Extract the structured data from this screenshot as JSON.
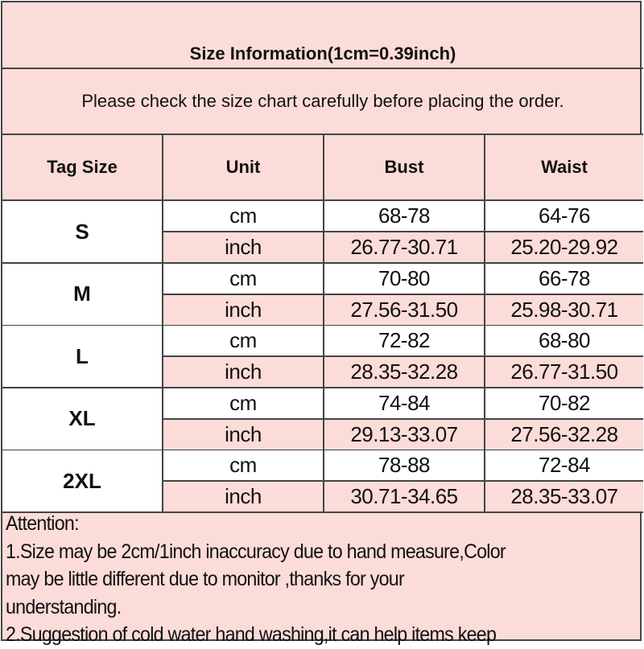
{
  "title": "Size Information(1cm=0.39inch)",
  "notice": "Please check the size chart carefully before placing the order.",
  "headers": [
    "Tag Size",
    "Unit",
    "Bust",
    "Waist"
  ],
  "rows": [
    {
      "size": "S",
      "cm": {
        "unit": "cm",
        "bust": "68-78",
        "waist": "64-76"
      },
      "inch": {
        "unit": "inch",
        "bust": "26.77-30.71",
        "waist": "25.20-29.92"
      }
    },
    {
      "size": "M",
      "cm": {
        "unit": "cm",
        "bust": "70-80",
        "waist": "66-78"
      },
      "inch": {
        "unit": "inch",
        "bust": "27.56-31.50",
        "waist": "25.98-30.71"
      }
    },
    {
      "size": "L",
      "cm": {
        "unit": "cm",
        "bust": "72-82",
        "waist": "68-80"
      },
      "inch": {
        "unit": "inch",
        "bust": "28.35-32.28",
        "waist": "26.77-31.50"
      }
    },
    {
      "size": "XL",
      "cm": {
        "unit": "cm",
        "bust": "74-84",
        "waist": "70-82"
      },
      "inch": {
        "unit": "inch",
        "bust": "29.13-33.07",
        "waist": "27.56-32.28"
      }
    },
    {
      "size": "2XL",
      "cm": {
        "unit": "cm",
        "bust": "78-88",
        "waist": "72-84"
      },
      "inch": {
        "unit": "inch",
        "bust": "30.71-34.65",
        "waist": "28.35-33.07"
      }
    }
  ],
  "attention": {
    "lines": [
      "Attention:",
      "1.Size may be 2cm/1inch inaccuracy due to hand measure,Color",
      "may be little different due to monitor ,thanks for your",
      "understanding.",
      "2.Suggestion of cold water hand washing,it can help items keep"
    ]
  },
  "colors": {
    "pink": "#fcdcd8",
    "border": "#444444"
  }
}
